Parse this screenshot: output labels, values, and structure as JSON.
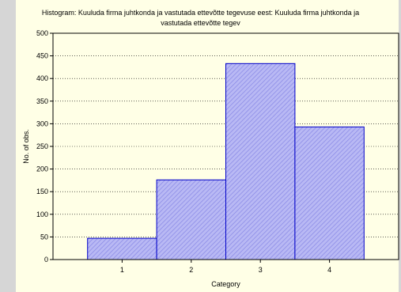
{
  "chart_data": {
    "type": "bar",
    "title": "Histogram: Kuuluda firma juhtkonda ja vastutada ettevõtte tegevuse eest: Kuuluda firma juhtkonda ja",
    "title_line2": "vastutada ettevõtte tegev",
    "xlabel": "Category",
    "ylabel": "No. of obs.",
    "categories": [
      "1",
      "2",
      "3",
      "4"
    ],
    "values": [
      47,
      176,
      433,
      293
    ],
    "ylim": [
      0,
      500
    ],
    "yticks": [
      0,
      50,
      100,
      150,
      200,
      250,
      300,
      350,
      400,
      450,
      500
    ],
    "grid": "horizontal dotted",
    "bar_fill": "hatched",
    "colors": {
      "bar_fill": "#b9b9f4",
      "bar_stroke": "#0000c8",
      "hatch": "#8a8ae6",
      "panel_bg": "#ffffe6",
      "frame_bg": "#d6d6d6"
    }
  }
}
